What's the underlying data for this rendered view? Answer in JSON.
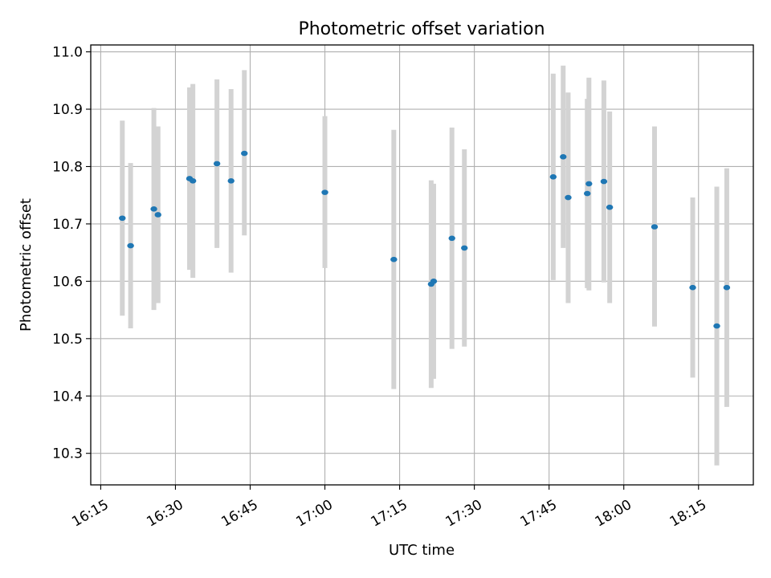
{
  "chart_data": {
    "type": "scatter",
    "title": "Photometric offset variation",
    "xlabel": "UTC time",
    "ylabel": "Photometric offset",
    "x_tick_labels": [
      "16:15",
      "16:30",
      "16:45",
      "17:00",
      "17:15",
      "17:30",
      "17:45",
      "18:00",
      "18:15"
    ],
    "y_tick_labels": [
      "10.3",
      "10.4",
      "10.5",
      "10.6",
      "10.7",
      "10.8",
      "10.9",
      "11.0"
    ],
    "x_ticks": [
      "16:15",
      "16:30",
      "16:45",
      "17:00",
      "17:15",
      "17:30",
      "17:45",
      "18:00",
      "18:15"
    ],
    "y_ticks": [
      10.3,
      10.4,
      10.5,
      10.6,
      10.7,
      10.8,
      10.9,
      11.0
    ],
    "xlim": [
      "16:13",
      "18:26"
    ],
    "ylim": [
      10.245,
      11.012
    ],
    "grid": true,
    "marker_color": "#1f77b4",
    "errorbar_color": "#d3d3d3",
    "series": [
      {
        "points": [
          {
            "x": "16:19:20",
            "y": 10.71,
            "yerr_low": 10.54,
            "yerr_high": 10.88
          },
          {
            "x": "16:21:00",
            "y": 10.662,
            "yerr_low": 10.518,
            "yerr_high": 10.806
          },
          {
            "x": "16:25:40",
            "y": 10.726,
            "yerr_low": 10.55,
            "yerr_high": 10.902
          },
          {
            "x": "16:26:30",
            "y": 10.716,
            "yerr_low": 10.562,
            "yerr_high": 10.87
          },
          {
            "x": "16:32:50",
            "y": 10.779,
            "yerr_low": 10.62,
            "yerr_high": 10.938
          },
          {
            "x": "16:33:30",
            "y": 10.775,
            "yerr_low": 10.606,
            "yerr_high": 10.944
          },
          {
            "x": "16:38:20",
            "y": 10.805,
            "yerr_low": 10.658,
            "yerr_high": 10.952
          },
          {
            "x": "16:41:10",
            "y": 10.775,
            "yerr_low": 10.615,
            "yerr_high": 10.935
          },
          {
            "x": "16:43:50",
            "y": 10.823,
            "yerr_low": 10.68,
            "yerr_high": 10.968
          },
          {
            "x": "17:00:00",
            "y": 10.755,
            "yerr_low": 10.623,
            "yerr_high": 10.888
          },
          {
            "x": "17:13:50",
            "y": 10.638,
            "yerr_low": 10.412,
            "yerr_high": 10.864
          },
          {
            "x": "17:21:20",
            "y": 10.595,
            "yerr_low": 10.414,
            "yerr_high": 10.776
          },
          {
            "x": "17:21:50",
            "y": 10.6,
            "yerr_low": 10.43,
            "yerr_high": 10.77
          },
          {
            "x": "17:25:30",
            "y": 10.675,
            "yerr_low": 10.482,
            "yerr_high": 10.868
          },
          {
            "x": "17:28:00",
            "y": 10.658,
            "yerr_low": 10.486,
            "yerr_high": 10.83
          },
          {
            "x": "17:45:50",
            "y": 10.782,
            "yerr_low": 10.602,
            "yerr_high": 10.962
          },
          {
            "x": "17:47:50",
            "y": 10.817,
            "yerr_low": 10.658,
            "yerr_high": 10.976
          },
          {
            "x": "17:48:50",
            "y": 10.746,
            "yerr_low": 10.562,
            "yerr_high": 10.929
          },
          {
            "x": "17:52:40",
            "y": 10.753,
            "yerr_low": 10.588,
            "yerr_high": 10.918
          },
          {
            "x": "17:53:00",
            "y": 10.77,
            "yerr_low": 10.584,
            "yerr_high": 10.955
          },
          {
            "x": "17:56:00",
            "y": 10.774,
            "yerr_low": 10.598,
            "yerr_high": 10.95
          },
          {
            "x": "17:57:10",
            "y": 10.729,
            "yerr_low": 10.562,
            "yerr_high": 10.896
          },
          {
            "x": "18:06:10",
            "y": 10.695,
            "yerr_low": 10.521,
            "yerr_high": 10.87
          },
          {
            "x": "18:13:50",
            "y": 10.589,
            "yerr_low": 10.432,
            "yerr_high": 10.746
          },
          {
            "x": "18:18:40",
            "y": 10.522,
            "yerr_low": 10.279,
            "yerr_high": 10.765
          },
          {
            "x": "18:20:40",
            "y": 10.589,
            "yerr_low": 10.381,
            "yerr_high": 10.797
          }
        ]
      }
    ]
  }
}
